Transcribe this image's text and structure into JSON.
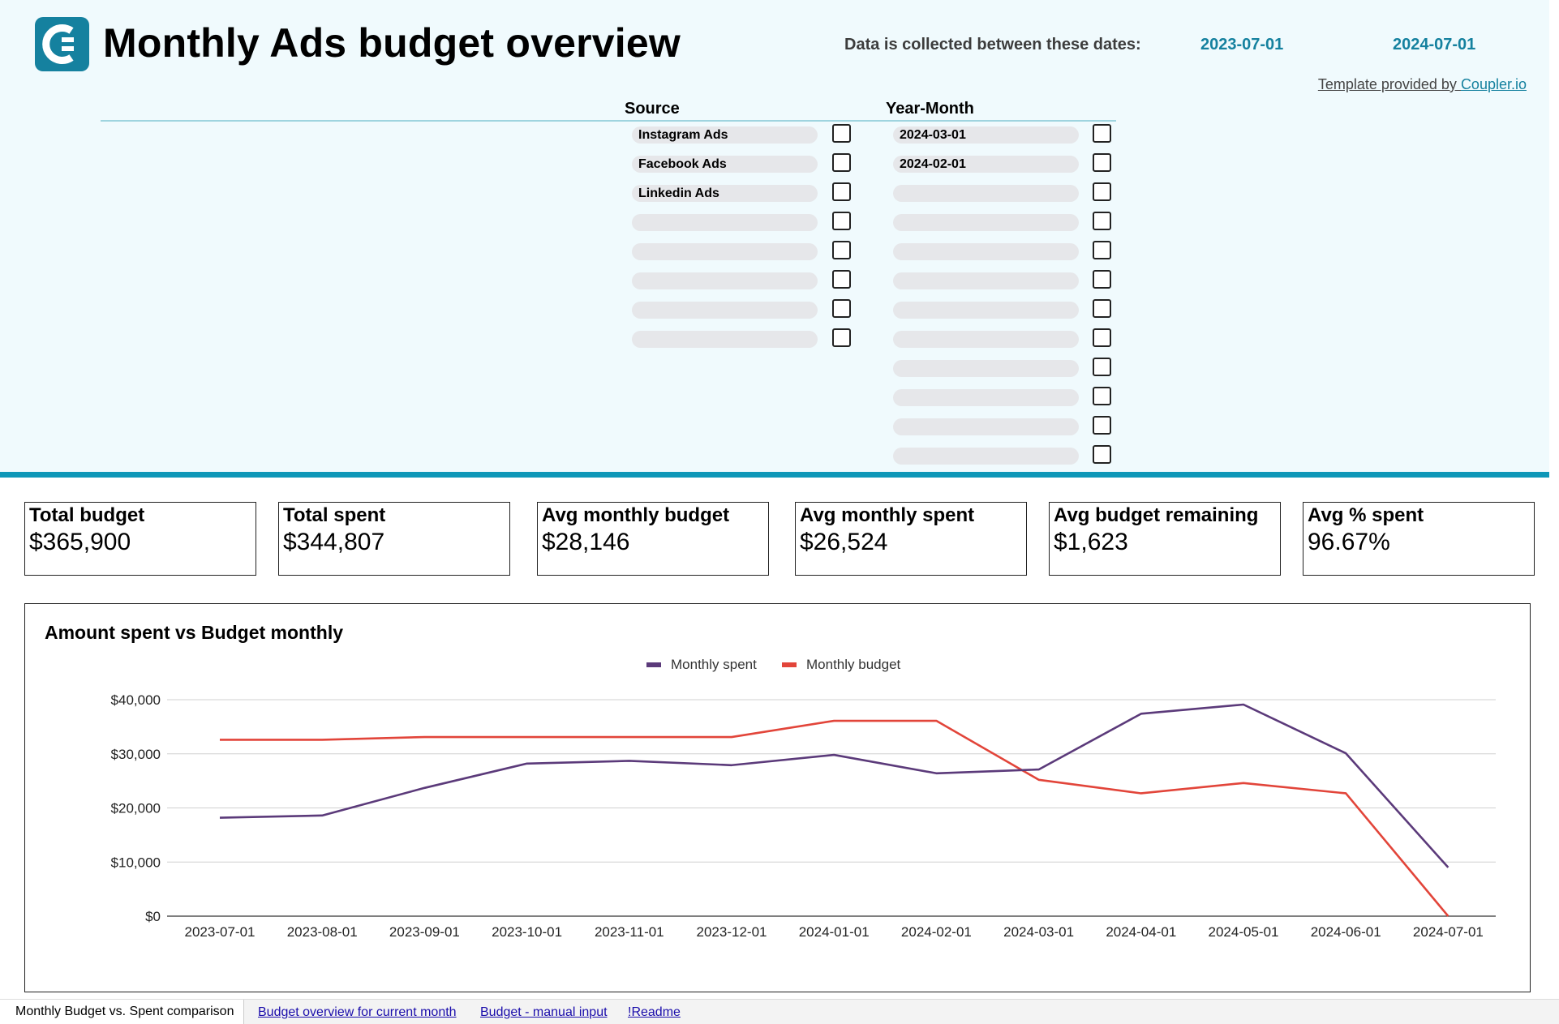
{
  "header": {
    "title": "Monthly Ads budget overview",
    "dates_label": "Data is collected between these dates:",
    "date_start": "2023-07-01",
    "date_end": "2024-07-01",
    "template_prefix": "Template provided by ",
    "template_link": "Coupler.io",
    "logo_icon": "coupler-logo-icon"
  },
  "filters": {
    "source": {
      "label": "Source",
      "items": [
        "Instagram Ads",
        "Facebook Ads",
        "Linkedin Ads",
        "",
        "",
        "",
        "",
        ""
      ]
    },
    "year_month": {
      "label": "Year-Month",
      "items": [
        "2024-03-01",
        "2024-02-01",
        "",
        "",
        "",
        "",
        "",
        "",
        "",
        "",
        "",
        ""
      ]
    }
  },
  "metrics": [
    {
      "label": "Total budget",
      "value": "$365,900"
    },
    {
      "label": "Total spent",
      "value": "$344,807"
    },
    {
      "label": "Avg monthly budget",
      "value": "$28,146"
    },
    {
      "label": "Avg monthly spent",
      "value": "$26,524"
    },
    {
      "label": "Avg budget remaining",
      "value": "$1,623"
    },
    {
      "label": "Avg % spent",
      "value": "96.67%"
    }
  ],
  "chart_data": {
    "type": "line",
    "title": "Amount spent vs Budget monthly",
    "x": [
      "2023-07-01",
      "2023-08-01",
      "2023-09-01",
      "2023-10-01",
      "2023-11-01",
      "2023-12-01",
      "2024-01-01",
      "2024-02-01",
      "2024-03-01",
      "2024-04-01",
      "2024-05-01",
      "2024-06-01",
      "2024-07-01"
    ],
    "series": [
      {
        "name": "Monthly spent",
        "color": "#5b3a7a",
        "values": [
          18200,
          18600,
          23700,
          28200,
          28700,
          27900,
          29800,
          26400,
          27100,
          37400,
          39100,
          30100,
          9000
        ]
      },
      {
        "name": "Monthly budget",
        "color": "#e2453a",
        "values": [
          32600,
          32600,
          33100,
          33100,
          33100,
          33100,
          36100,
          36100,
          25200,
          22700,
          24600,
          22700,
          0
        ]
      }
    ],
    "yticks": [
      "$0",
      "$10,000",
      "$20,000",
      "$30,000",
      "$40,000"
    ],
    "ylim": [
      0,
      40000
    ],
    "grid": true,
    "legend": "top-center"
  },
  "tabs": {
    "active": "Monthly Budget vs. Spent comparison",
    "links": [
      "Budget overview for current month",
      "Budget - manual input",
      "!Readme"
    ]
  }
}
